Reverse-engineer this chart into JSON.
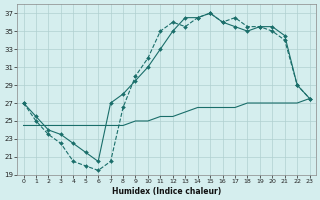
{
  "xlabel": "Humidex (Indice chaleur)",
  "background_color": "#d5eeee",
  "grid_color": "#b0d0d0",
  "line_color": "#1a6e6a",
  "xlim": [
    -0.5,
    23.5
  ],
  "ylim": [
    19,
    38
  ],
  "yticks": [
    19,
    21,
    23,
    25,
    27,
    29,
    31,
    33,
    35,
    37
  ],
  "xticks": [
    0,
    1,
    2,
    3,
    4,
    5,
    6,
    7,
    8,
    9,
    10,
    11,
    12,
    13,
    14,
    15,
    16,
    17,
    18,
    19,
    20,
    21,
    22,
    23
  ],
  "line_dashed_x": [
    0,
    1,
    2,
    3,
    4,
    5,
    6,
    7,
    8,
    9,
    10,
    11,
    12,
    13,
    14,
    15,
    16,
    17,
    18,
    19,
    20,
    21,
    22,
    23
  ],
  "line_dashed_y": [
    27,
    25,
    23.5,
    22.5,
    20.5,
    20.0,
    19.5,
    20.5,
    26.5,
    30,
    32,
    35,
    36,
    35.5,
    36.5,
    37,
    36,
    36.5,
    35.5,
    35.5,
    35,
    34,
    29,
    27.5
  ],
  "line_solid_x": [
    0,
    1,
    2,
    3,
    4,
    5,
    6,
    7,
    8,
    9,
    10,
    11,
    12,
    13,
    14,
    15,
    16,
    17,
    18,
    19,
    20,
    21,
    22,
    23
  ],
  "line_solid_y": [
    27,
    25.5,
    24,
    23.5,
    22.5,
    21.5,
    20.5,
    27,
    28.0,
    29.5,
    31,
    33,
    35,
    36.5,
    36.5,
    37,
    36,
    35.5,
    35,
    35.5,
    35.5,
    34.5,
    29,
    27.5
  ],
  "line_diag_x": [
    0,
    1,
    2,
    3,
    4,
    5,
    6,
    7,
    8,
    9,
    10,
    11,
    12,
    13,
    14,
    15,
    16,
    17,
    18,
    19,
    20,
    21,
    22,
    23
  ],
  "line_diag_y": [
    24.5,
    24.5,
    24.5,
    24.5,
    24.5,
    24.5,
    24.5,
    24.5,
    24.5,
    25.0,
    25.0,
    25.5,
    25.5,
    26.0,
    26.5,
    26.5,
    26.5,
    26.5,
    27.0,
    27.0,
    27.0,
    27.0,
    27.0,
    27.5
  ]
}
